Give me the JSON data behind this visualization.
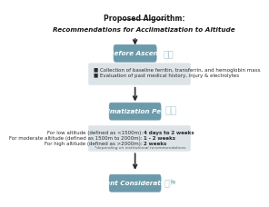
{
  "title_line1": "Proposed Algorithm:",
  "title_line2": "Recommendations for Acclimatization to Altitude",
  "box1_label": "Before Ascent",
  "box1_color": "#6b9aaa",
  "box1_text": [
    "■ Collection of baseline ferritin, transferrin, and hemoglobin mass",
    "■ Evaluation of past medical history, injury & electrolytes"
  ],
  "box2_label": "Acclimatization Period",
  "box2_color": "#6b9aaa",
  "box2_text_parts": [
    [
      "For low altitude (defined as <1500m): ",
      "4 days to 2 weeks"
    ],
    [
      "For moderate altitude (defined as 1500m to 2000m): ",
      "1 - 2 weeks"
    ],
    [
      "For high altitude (defined as >2000m): ",
      "2 weeks"
    ]
  ],
  "box2_footnote": "*depending on institutional recommendations",
  "box3_label": "Ascent Considerations",
  "box3_color": "#6b9aaa",
  "content_bg": "#dde4e8",
  "arrow_color": "#2b2b2b",
  "bg_color": "#ffffff",
  "title_fontsize": 5.5,
  "label_fontsize": 5.2,
  "content_fontsize": 4.0,
  "footnote_fontsize": 3.2
}
